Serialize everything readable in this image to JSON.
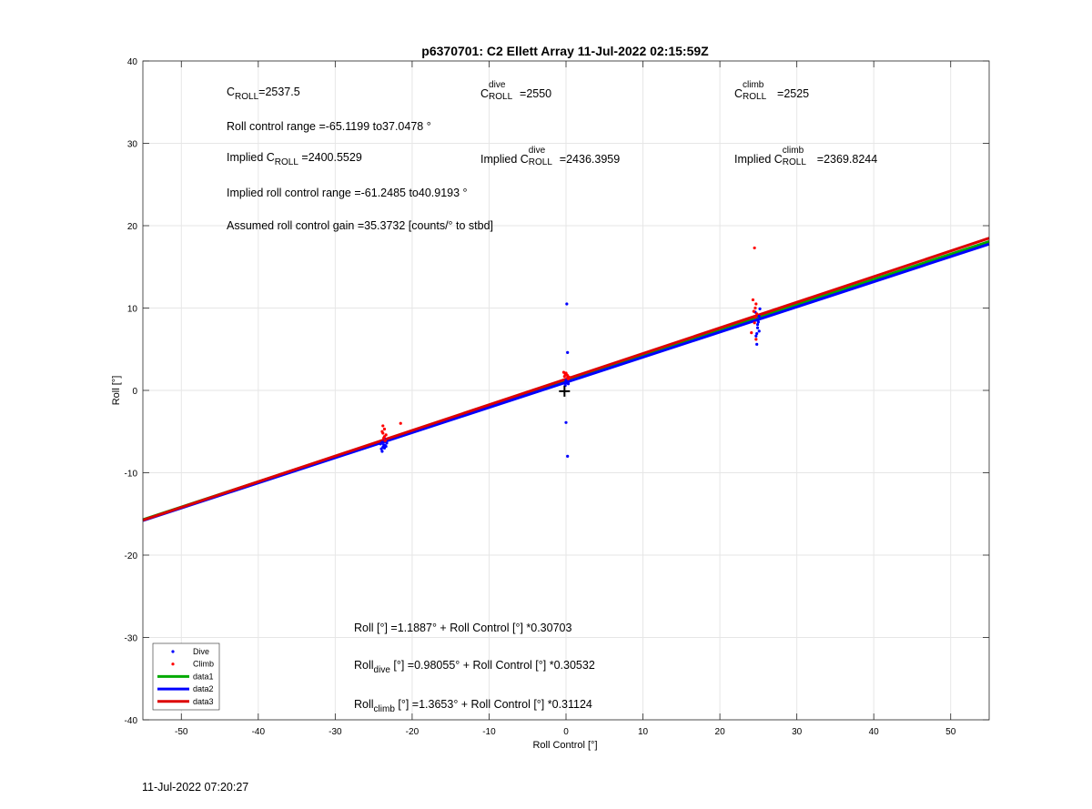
{
  "chart_data": {
    "type": "scatter",
    "title": "p6370701: C2 Ellett Array 11-Jul-2022 02:15:59Z",
    "xlabel": "Roll Control [°]",
    "ylabel": "Roll [°]",
    "xlim": [
      -55,
      55
    ],
    "ylim": [
      -40,
      40
    ],
    "xticks": [
      -50,
      -40,
      -30,
      -20,
      -10,
      0,
      10,
      20,
      30,
      40,
      50
    ],
    "yticks": [
      -40,
      -30,
      -20,
      -10,
      0,
      10,
      20,
      30,
      40
    ],
    "grid": true,
    "legend_position": "bottom-left",
    "series": [
      {
        "name": "Dive",
        "kind": "points",
        "color": "#0000ff",
        "x": [
          -23.9,
          -23.6,
          -23.4,
          -24.1,
          -23.8,
          -23.5,
          -23.7,
          -24.0,
          -23.3,
          -23.6,
          -23.9,
          -23.5,
          0.1,
          0.2,
          0.0,
          0.3,
          0.1,
          -0.1,
          0.2,
          0.0,
          0.2,
          0.1,
          24.6,
          24.9,
          25.1,
          24.8,
          25.0,
          24.7,
          25.2,
          24.9,
          25.0,
          24.8,
          25.1
        ],
        "y": [
          -7.4,
          -7.0,
          -6.8,
          -6.5,
          -6.9,
          -6.2,
          -6.6,
          -7.1,
          -6.4,
          -5.9,
          -6.3,
          -6.7,
          10.5,
          4.6,
          1.2,
          0.8,
          1.0,
          0.6,
          1.5,
          -3.9,
          -8.0,
          0.9,
          9.5,
          8.0,
          7.2,
          5.6,
          8.6,
          6.6,
          9.9,
          7.6,
          8.3,
          6.9,
          9.0
        ]
      },
      {
        "name": "Climb",
        "kind": "points",
        "color": "#ff0000",
        "x": [
          -23.8,
          -23.6,
          -23.9,
          -23.4,
          -23.7,
          -21.5,
          -23.5,
          -23.8,
          -23.6,
          -0.3,
          -0.1,
          0.2,
          0.4,
          0.1,
          0.3,
          -0.2,
          0.0,
          0.2,
          24.5,
          24.3,
          24.7,
          24.6,
          24.4,
          24.8,
          24.6,
          24.1,
          24.5,
          24.7
        ],
        "y": [
          -4.3,
          -4.7,
          -5.0,
          -5.4,
          -5.8,
          -4.0,
          -6.1,
          -5.2,
          -5.6,
          2.2,
          2.0,
          1.8,
          1.6,
          1.9,
          1.4,
          1.7,
          2.1,
          1.5,
          17.3,
          11.0,
          10.5,
          10.0,
          9.6,
          9.3,
          8.9,
          7.0,
          8.2,
          6.2
        ]
      },
      {
        "name": "data1",
        "kind": "line",
        "color": "#00aa00",
        "intercept": 1.1887,
        "slope": 0.30703
      },
      {
        "name": "data2",
        "kind": "line",
        "color": "#0000ff",
        "intercept": 0.98055,
        "slope": 0.30532
      },
      {
        "name": "data3",
        "kind": "line",
        "color": "#dd0000",
        "intercept": 1.3653,
        "slope": 0.31124
      }
    ],
    "marker": {
      "type": "plus",
      "x": -0.2,
      "y": -0.1,
      "color": "#000000"
    },
    "annotations": {
      "c_roll_symbol": "C",
      "c_roll_sub": "ROLL",
      "c_roll_value": "=2537.5",
      "c_dive_symbol": "C",
      "c_dive_sup": "dive",
      "c_dive_sub": "ROLL",
      "c_dive_value": "=2550",
      "c_climb_symbol": "C",
      "c_climb_sup": "climb",
      "c_climb_sub": "ROLL",
      "c_climb_value": "=2525",
      "roll_control_range": "Roll control range =-65.1199 to37.0478 °",
      "implied_prefix": "Implied C",
      "implied_roll_sub": "ROLL",
      "implied_roll_value": " =2400.5529",
      "implied_dive_sup": "dive",
      "implied_dive_sub": "ROLL",
      "implied_dive_value": "=2436.3959",
      "implied_climb_sup": "climb",
      "implied_climb_sub": "ROLL",
      "implied_climb_value": "=2369.8244",
      "implied_range": "Implied roll control range =-61.2485 to40.9193 °",
      "assumed_gain": "Assumed roll control gain =35.3732 [counts/° to stbd]",
      "fit_all": "Roll [°] =1.1887° + Roll Control [°] *0.30703",
      "fit_dive_symbol": "Roll",
      "fit_dive_sub": "dive",
      "fit_dive_rest": " [°] =0.98055° + Roll Control [°] *0.30532",
      "fit_climb_symbol": "Roll",
      "fit_climb_sub": "climb",
      "fit_climb_rest": " [°] =1.3653° + Roll Control [°] *0.31124"
    }
  },
  "footer": {
    "timestamp": "11-Jul-2022 07:20:27"
  }
}
